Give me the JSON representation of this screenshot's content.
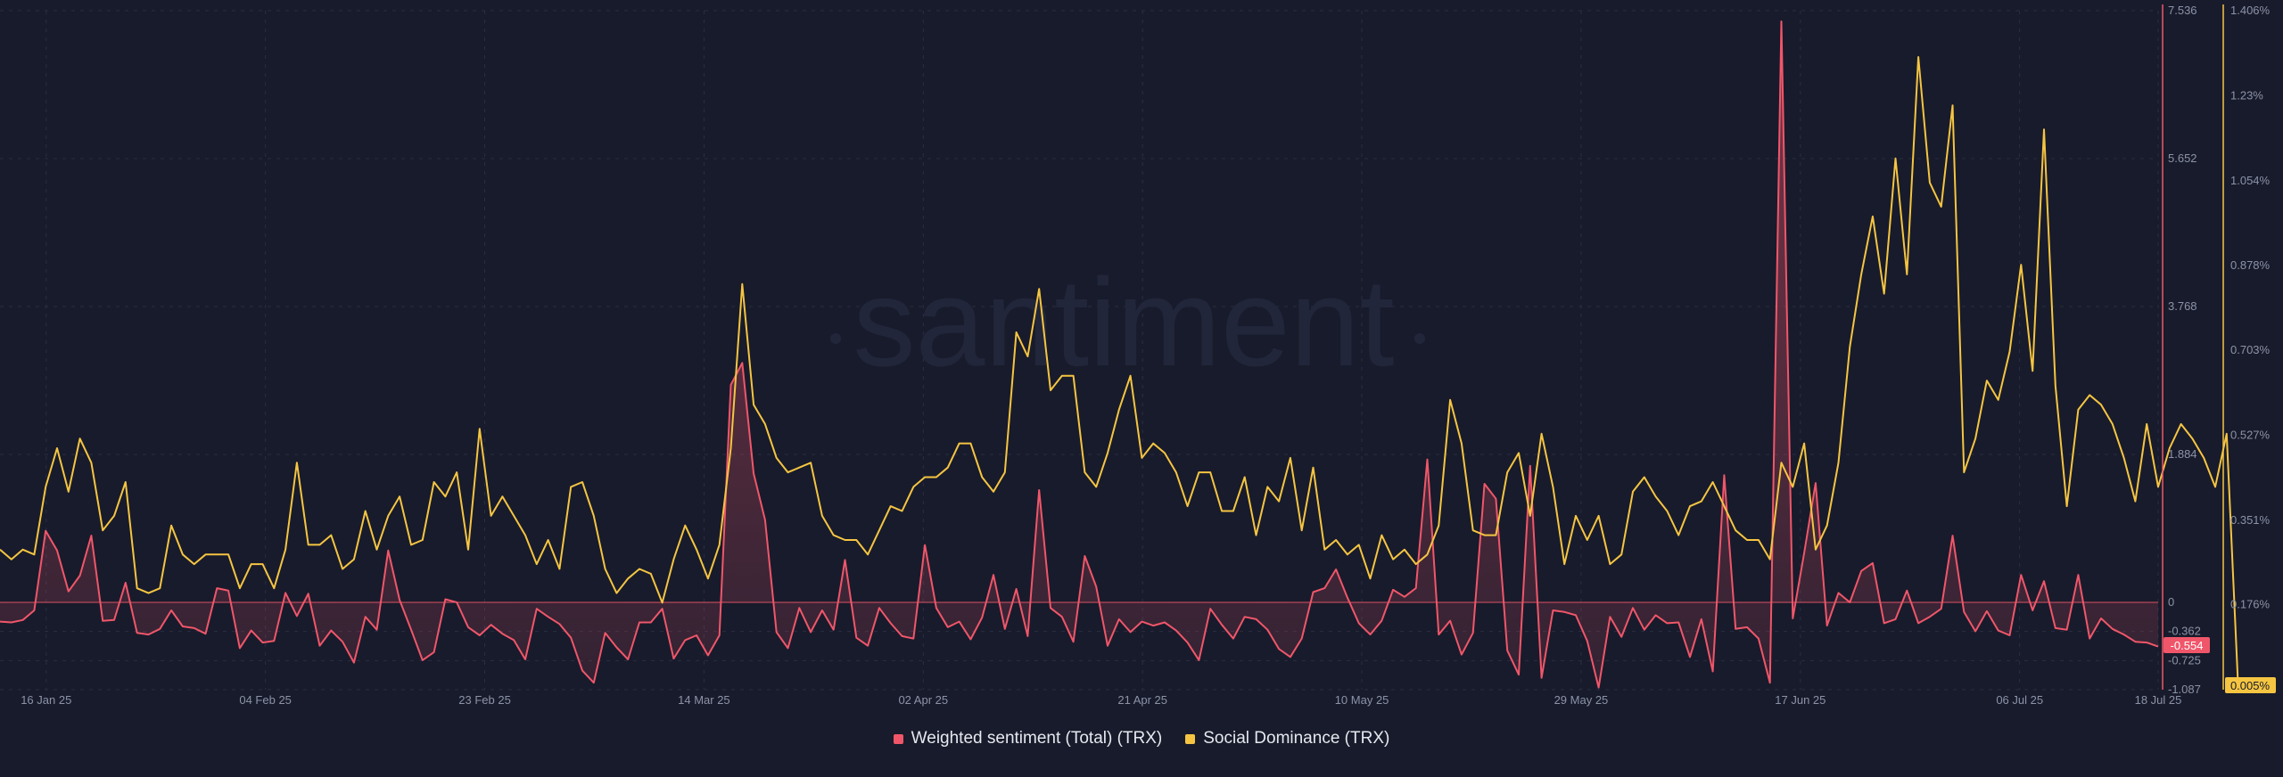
{
  "watermark": "santiment",
  "colors": {
    "background": "#181b2b",
    "sentiment": "#f0566a",
    "dominance": "#f5c542",
    "grid": "#2a2e42",
    "tick_text": "#8c93a8"
  },
  "legend": [
    {
      "label": "Weighted sentiment (Total) (TRX)",
      "color": "#f0566a"
    },
    {
      "label": "Social Dominance (TRX)",
      "color": "#f5c542"
    }
  ],
  "badges": {
    "sentiment_current": "-0.554",
    "dominance_current": "0.005%"
  },
  "chart_data": {
    "type": "line",
    "title": "",
    "x_start": "2025-01-12",
    "x_end": "2025-07-18",
    "x_ticks": [
      "16 Jan 25",
      "04 Feb 25",
      "23 Feb 25",
      "14 Mar 25",
      "02 Apr 25",
      "21 Apr 25",
      "10 May 25",
      "29 May 25",
      "17 Jun 25",
      "06 Jul 25",
      "18 Jul 25"
    ],
    "y_left": {
      "series": "Weighted sentiment (Total) (TRX)",
      "ticks": [
        "7.536",
        "5.652",
        "3.768",
        "1.884",
        "0",
        "-0.362",
        "-0.725",
        "-1.087"
      ],
      "range": [
        -1.087,
        7.536
      ]
    },
    "y_right": {
      "series": "Social Dominance (TRX)",
      "ticks": [
        "1.406%",
        "1.23%",
        "1.054%",
        "0.878%",
        "0.703%",
        "0.527%",
        "0.351%",
        "0.176%"
      ],
      "range": [
        0,
        1.406
      ]
    },
    "series": [
      {
        "name": "Weighted sentiment (Total) (TRX)",
        "axis": "left",
        "values": [
          -0.24,
          -0.25,
          -0.22,
          -0.1,
          0.91,
          0.66,
          0.14,
          0.34,
          0.85,
          -0.23,
          -0.22,
          0.25,
          -0.38,
          -0.4,
          -0.33,
          -0.1,
          -0.3,
          -0.32,
          -0.39,
          0.18,
          0.15,
          -0.57,
          -0.35,
          -0.5,
          -0.48,
          0.12,
          -0.17,
          0.11,
          -0.54,
          -0.35,
          -0.49,
          -0.75,
          -0.18,
          -0.34,
          0.66,
          0.03,
          -0.34,
          -0.72,
          -0.62,
          0.04,
          0,
          -0.31,
          -0.41,
          -0.28,
          -0.39,
          -0.47,
          -0.71,
          -0.08,
          -0.18,
          -0.27,
          -0.44,
          -0.85,
          -1,
          -0.38,
          -0.56,
          -0.71,
          -0.25,
          -0.25,
          -0.08,
          -0.7,
          -0.47,
          -0.41,
          -0.66,
          -0.41,
          2.77,
          3.05,
          1.64,
          1.05,
          -0.37,
          -0.57,
          -0.07,
          -0.37,
          -0.1,
          -0.34,
          0.54,
          -0.44,
          -0.54,
          -0.07,
          -0.26,
          -0.42,
          -0.45,
          0.73,
          -0.07,
          -0.31,
          -0.24,
          -0.46,
          -0.19,
          0.35,
          -0.33,
          0.17,
          -0.42,
          1.43,
          -0.07,
          -0.18,
          -0.49,
          0.59,
          0.2,
          -0.54,
          -0.21,
          -0.37,
          -0.24,
          -0.29,
          -0.25,
          -0.35,
          -0.5,
          -0.72,
          -0.08,
          -0.28,
          -0.45,
          -0.18,
          -0.21,
          -0.34,
          -0.58,
          -0.68,
          -0.45,
          0.13,
          0.18,
          0.42,
          0.06,
          -0.26,
          -0.4,
          -0.23,
          0.16,
          0.07,
          0.18,
          1.82,
          -0.4,
          -0.23,
          -0.65,
          -0.38,
          1.51,
          1.32,
          -0.6,
          -0.9,
          1.74,
          -0.94,
          -0.1,
          -0.12,
          -0.16,
          -0.48,
          -1.06,
          -0.18,
          -0.43,
          -0.07,
          -0.34,
          -0.16,
          -0.26,
          -0.25,
          -0.68,
          -0.21,
          -0.86,
          1.62,
          -0.33,
          -0.31,
          -0.45,
          -1,
          7.4,
          -0.2,
          0.63,
          1.52,
          -0.29,
          0.12,
          0,
          0.4,
          0.5,
          -0.26,
          -0.21,
          0.15,
          -0.26,
          -0.18,
          -0.08,
          0.85,
          -0.12,
          -0.36,
          -0.11,
          -0.35,
          -0.41,
          0.35,
          -0.1,
          0.27,
          -0.32,
          -0.34,
          0.35,
          -0.45,
          -0.2,
          -0.33,
          -0.4,
          -0.49,
          -0.5,
          -0.55
        ]
      },
      {
        "name": "Social Dominance (TRX)",
        "axis": "right",
        "values": [
          0.29,
          0.27,
          0.29,
          0.28,
          0.42,
          0.5,
          0.41,
          0.52,
          0.47,
          0.33,
          0.36,
          0.43,
          0.21,
          0.2,
          0.21,
          0.34,
          0.28,
          0.26,
          0.28,
          0.28,
          0.28,
          0.21,
          0.26,
          0.26,
          0.21,
          0.29,
          0.47,
          0.3,
          0.3,
          0.32,
          0.25,
          0.27,
          0.37,
          0.29,
          0.36,
          0.4,
          0.3,
          0.31,
          0.43,
          0.4,
          0.45,
          0.29,
          0.54,
          0.36,
          0.4,
          0.36,
          0.32,
          0.26,
          0.31,
          0.25,
          0.42,
          0.43,
          0.36,
          0.25,
          0.2,
          0.23,
          0.25,
          0.24,
          0.18,
          0.27,
          0.34,
          0.29,
          0.23,
          0.3,
          0.5,
          0.84,
          0.59,
          0.55,
          0.48,
          0.45,
          0.46,
          0.47,
          0.36,
          0.32,
          0.31,
          0.31,
          0.28,
          0.33,
          0.38,
          0.37,
          0.42,
          0.44,
          0.44,
          0.46,
          0.51,
          0.51,
          0.44,
          0.41,
          0.45,
          0.74,
          0.69,
          0.83,
          0.62,
          0.65,
          0.65,
          0.45,
          0.42,
          0.49,
          0.58,
          0.65,
          0.48,
          0.51,
          0.49,
          0.45,
          0.38,
          0.45,
          0.45,
          0.37,
          0.37,
          0.44,
          0.32,
          0.42,
          0.39,
          0.48,
          0.33,
          0.46,
          0.29,
          0.31,
          0.28,
          0.3,
          0.23,
          0.32,
          0.27,
          0.29,
          0.26,
          0.28,
          0.34,
          0.6,
          0.51,
          0.33,
          0.32,
          0.32,
          0.45,
          0.49,
          0.36,
          0.53,
          0.42,
          0.26,
          0.36,
          0.31,
          0.36,
          0.26,
          0.28,
          0.41,
          0.44,
          0.4,
          0.37,
          0.32,
          0.38,
          0.39,
          0.43,
          0.38,
          0.33,
          0.31,
          0.31,
          0.27,
          0.47,
          0.42,
          0.51,
          0.29,
          0.34,
          0.47,
          0.71,
          0.86,
          0.98,
          0.82,
          1.1,
          0.86,
          1.31,
          1.05,
          1,
          1.21,
          0.45,
          0.52,
          0.64,
          0.6,
          0.7,
          0.88,
          0.66,
          1.16,
          0.63,
          0.38,
          0.58,
          0.61,
          0.59,
          0.55,
          0.48,
          0.39,
          0.55,
          0.42,
          0.5,
          0.55,
          0.52,
          0.48,
          0.42,
          0.53,
          0.01
        ]
      }
    ]
  }
}
